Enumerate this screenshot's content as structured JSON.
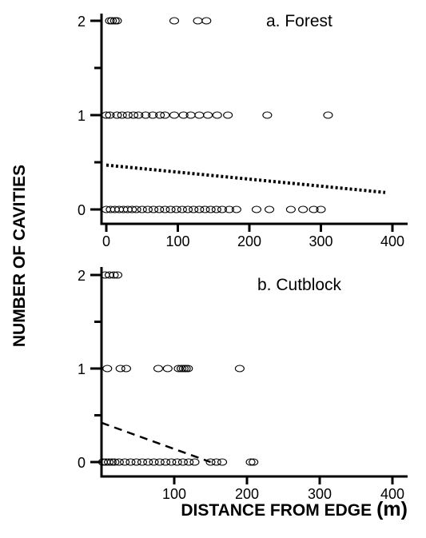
{
  "chart_data": [
    {
      "type": "scatter",
      "panel_label": "a. Forest",
      "xlim": [
        0,
        400
      ],
      "ylim": [
        0,
        2
      ],
      "x_ticks": [
        0,
        100,
        200,
        300,
        400
      ],
      "y_ticks": [
        0,
        1,
        2
      ],
      "points": [
        {
          "x": 5,
          "y": 2
        },
        {
          "x": 8,
          "y": 2
        },
        {
          "x": 12,
          "y": 2
        },
        {
          "x": 15,
          "y": 2
        },
        {
          "x": 95,
          "y": 2
        },
        {
          "x": 128,
          "y": 2
        },
        {
          "x": 140,
          "y": 2
        },
        {
          "x": 0,
          "y": 1
        },
        {
          "x": 5,
          "y": 1
        },
        {
          "x": 15,
          "y": 1
        },
        {
          "x": 22,
          "y": 1
        },
        {
          "x": 30,
          "y": 1
        },
        {
          "x": 38,
          "y": 1
        },
        {
          "x": 45,
          "y": 1
        },
        {
          "x": 55,
          "y": 1
        },
        {
          "x": 65,
          "y": 1
        },
        {
          "x": 75,
          "y": 1
        },
        {
          "x": 82,
          "y": 1
        },
        {
          "x": 95,
          "y": 1
        },
        {
          "x": 108,
          "y": 1
        },
        {
          "x": 118,
          "y": 1
        },
        {
          "x": 130,
          "y": 1
        },
        {
          "x": 142,
          "y": 1
        },
        {
          "x": 155,
          "y": 1
        },
        {
          "x": 170,
          "y": 1
        },
        {
          "x": 225,
          "y": 1
        },
        {
          "x": 310,
          "y": 1
        },
        {
          "x": 0,
          "y": 0
        },
        {
          "x": 6,
          "y": 0
        },
        {
          "x": 12,
          "y": 0
        },
        {
          "x": 18,
          "y": 0
        },
        {
          "x": 24,
          "y": 0
        },
        {
          "x": 30,
          "y": 0
        },
        {
          "x": 36,
          "y": 0
        },
        {
          "x": 42,
          "y": 0
        },
        {
          "x": 50,
          "y": 0
        },
        {
          "x": 58,
          "y": 0
        },
        {
          "x": 66,
          "y": 0
        },
        {
          "x": 74,
          "y": 0
        },
        {
          "x": 82,
          "y": 0
        },
        {
          "x": 90,
          "y": 0
        },
        {
          "x": 98,
          "y": 0
        },
        {
          "x": 106,
          "y": 0
        },
        {
          "x": 114,
          "y": 0
        },
        {
          "x": 122,
          "y": 0
        },
        {
          "x": 130,
          "y": 0
        },
        {
          "x": 138,
          "y": 0
        },
        {
          "x": 146,
          "y": 0
        },
        {
          "x": 154,
          "y": 0
        },
        {
          "x": 162,
          "y": 0
        },
        {
          "x": 172,
          "y": 0
        },
        {
          "x": 182,
          "y": 0
        },
        {
          "x": 210,
          "y": 0
        },
        {
          "x": 228,
          "y": 0
        },
        {
          "x": 258,
          "y": 0
        },
        {
          "x": 275,
          "y": 0
        },
        {
          "x": 290,
          "y": 0
        },
        {
          "x": 300,
          "y": 0
        }
      ],
      "trend_line": {
        "x": [
          0,
          390
        ],
        "y": [
          0.47,
          0.18
        ],
        "style": "dotted"
      }
    },
    {
      "type": "scatter",
      "panel_label": "b. Cutblock",
      "xlim": [
        0,
        400
      ],
      "ylim": [
        0,
        2
      ],
      "x_ticks": [
        100,
        200,
        300,
        400
      ],
      "y_ticks": [
        0,
        1,
        2
      ],
      "points": [
        {
          "x": 5,
          "y": 2
        },
        {
          "x": 11,
          "y": 2
        },
        {
          "x": 17,
          "y": 2
        },
        {
          "x": 22,
          "y": 2
        },
        {
          "x": 8,
          "y": 1
        },
        {
          "x": 26,
          "y": 1
        },
        {
          "x": 34,
          "y": 1
        },
        {
          "x": 78,
          "y": 1
        },
        {
          "x": 91,
          "y": 1
        },
        {
          "x": 106,
          "y": 1
        },
        {
          "x": 110,
          "y": 1
        },
        {
          "x": 113,
          "y": 1
        },
        {
          "x": 116,
          "y": 1
        },
        {
          "x": 119,
          "y": 1
        },
        {
          "x": 190,
          "y": 1
        },
        {
          "x": 2,
          "y": 0
        },
        {
          "x": 6,
          "y": 0
        },
        {
          "x": 10,
          "y": 0
        },
        {
          "x": 14,
          "y": 0
        },
        {
          "x": 18,
          "y": 0
        },
        {
          "x": 24,
          "y": 0
        },
        {
          "x": 32,
          "y": 0
        },
        {
          "x": 40,
          "y": 0
        },
        {
          "x": 48,
          "y": 0
        },
        {
          "x": 56,
          "y": 0
        },
        {
          "x": 64,
          "y": 0
        },
        {
          "x": 72,
          "y": 0
        },
        {
          "x": 80,
          "y": 0
        },
        {
          "x": 88,
          "y": 0
        },
        {
          "x": 96,
          "y": 0
        },
        {
          "x": 104,
          "y": 0
        },
        {
          "x": 112,
          "y": 0
        },
        {
          "x": 120,
          "y": 0
        },
        {
          "x": 128,
          "y": 0
        },
        {
          "x": 150,
          "y": 0
        },
        {
          "x": 158,
          "y": 0
        },
        {
          "x": 166,
          "y": 0
        },
        {
          "x": 205,
          "y": 0
        },
        {
          "x": 209,
          "y": 0
        }
      ],
      "trend_line": {
        "x": [
          0,
          150
        ],
        "y": [
          0.42,
          0.0
        ],
        "style": "dashed"
      }
    }
  ],
  "y_axis_title": "NUMBER OF CAVITIES",
  "x_axis_title_main": "DISTANCE FROM EDGE",
  "x_axis_title_unit": "(m)"
}
